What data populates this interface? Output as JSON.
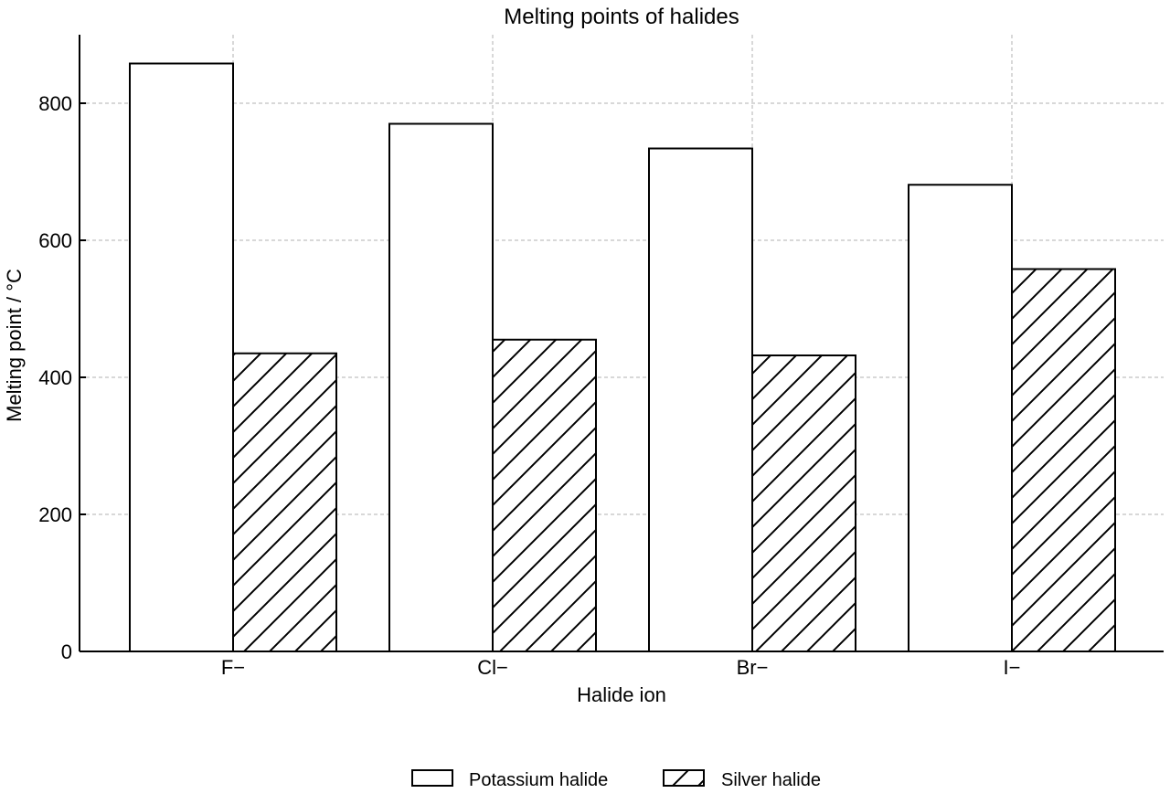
{
  "chart_data": {
    "type": "bar",
    "title": "Melting points of halides",
    "xlabel": "Halide ion",
    "ylabel": "Melting point / °C",
    "categories": [
      "F−",
      "Cl−",
      "Br−",
      "I−"
    ],
    "series": [
      {
        "name": "Potassium halide",
        "values": [
          858,
          770,
          734,
          681
        ],
        "fill": "none",
        "hatch": false
      },
      {
        "name": "Silver halide",
        "values": [
          435,
          455,
          432,
          558
        ],
        "fill": "hatch",
        "hatch": true
      }
    ],
    "ylim": [
      0,
      900
    ],
    "yticks": [
      0,
      200,
      400,
      600,
      800
    ],
    "grid": true,
    "legend_position": "bottom-center",
    "colors": {
      "bar_edge": "#000000",
      "grid": "#b0b0b0",
      "axis": "#000000"
    }
  }
}
